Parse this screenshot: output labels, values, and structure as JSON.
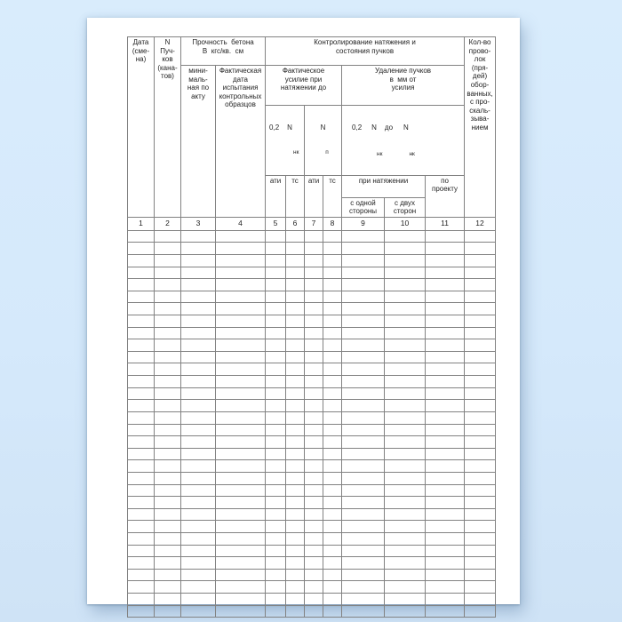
{
  "document": {
    "colors": {
      "background_top": "#d9ecfc",
      "background_bottom": "#cfe3f6",
      "paper": "#ffffff",
      "border": "#828282",
      "text": "#1f1f1f"
    },
    "table": {
      "header": {
        "date": "Дата\n(сме-\nна)",
        "bundles": "N\nПуч-\nков\n(кана-\nтов)",
        "strength_group": "Прочность  бетона\nВ  кгс/кв.  см",
        "strength_min": "мини-\nмаль-\nная по\nакту",
        "strength_date": "Фактическая\nдата\nиспытания\nконтрольных\nобразцов",
        "control_group": "Контролирование натяжения и\nсостояния пучков",
        "actual_force": "Фактическое\nусилие при\nнатяжении до",
        "removal": "Удаление пучков\nв  мм от\nусилия",
        "f02": {
          "p1": "0,2",
          "p2": "N",
          "sub": "нк"
        },
        "np": {
          "p1": "N",
          "sub": "п"
        },
        "range": {
          "p1": "0,2",
          "p2": "N",
          "p3": "до",
          "p4": "N",
          "sub1": "нк",
          "sub2": "нк"
        },
        "units": [
          "ати",
          "тс",
          "ати",
          "тс"
        ],
        "at_tension": "при натяжении",
        "one_side": "с одной\nстороны",
        "two_sides": "с двух\nсторон",
        "by_project": "по\nпроекту",
        "wires": "Кол-во\nпрово-\nлок\n(пря-\nдей)\nобор-\nванных,\nс про-\nскаль-\nзыва-\nнием",
        "numbers": [
          "1",
          "2",
          "3",
          "4",
          "5",
          "6",
          "7",
          "8",
          "9",
          "10",
          "11",
          "12"
        ]
      },
      "body": {
        "row_count": 32,
        "col_count": 12
      }
    }
  }
}
